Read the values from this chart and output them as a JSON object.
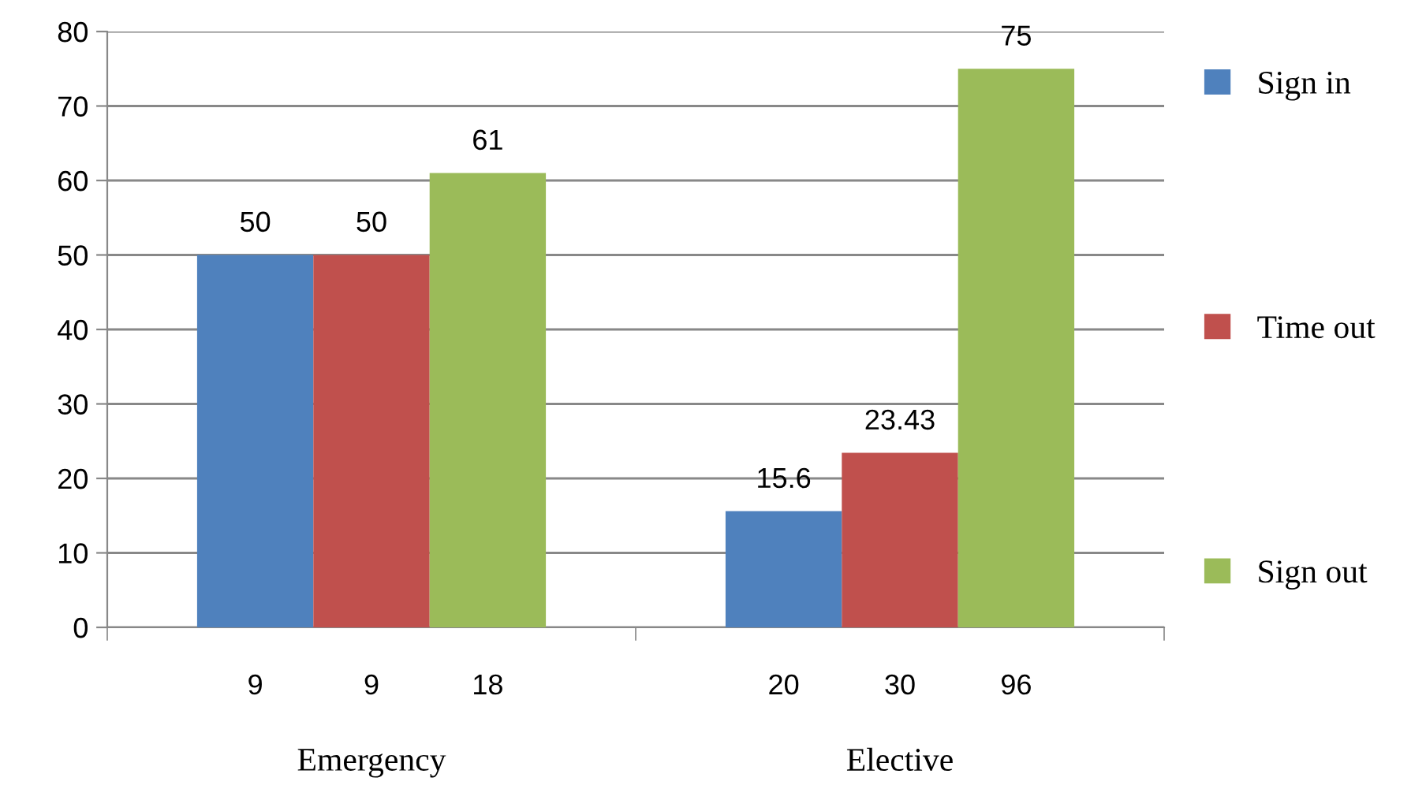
{
  "chart_data": {
    "type": "bar",
    "categories": [
      "Emergency",
      "Elective"
    ],
    "series": [
      {
        "name": "Sign in",
        "color": "#4f81bd",
        "values": [
          50,
          15.6
        ]
      },
      {
        "name": "Time out",
        "color": "#c0504d",
        "values": [
          50,
          23.43
        ]
      },
      {
        "name": "Sign out",
        "color": "#9bbb59",
        "values": [
          61,
          75
        ]
      }
    ],
    "annotations": [
      "9",
      "9",
      "18",
      "20",
      "30",
      "96"
    ],
    "ylim": [
      0,
      80
    ],
    "yticks": [
      0,
      10,
      20,
      30,
      40,
      50,
      60,
      70,
      80
    ],
    "grid": "y",
    "legend": "right",
    "data_labels": true
  }
}
